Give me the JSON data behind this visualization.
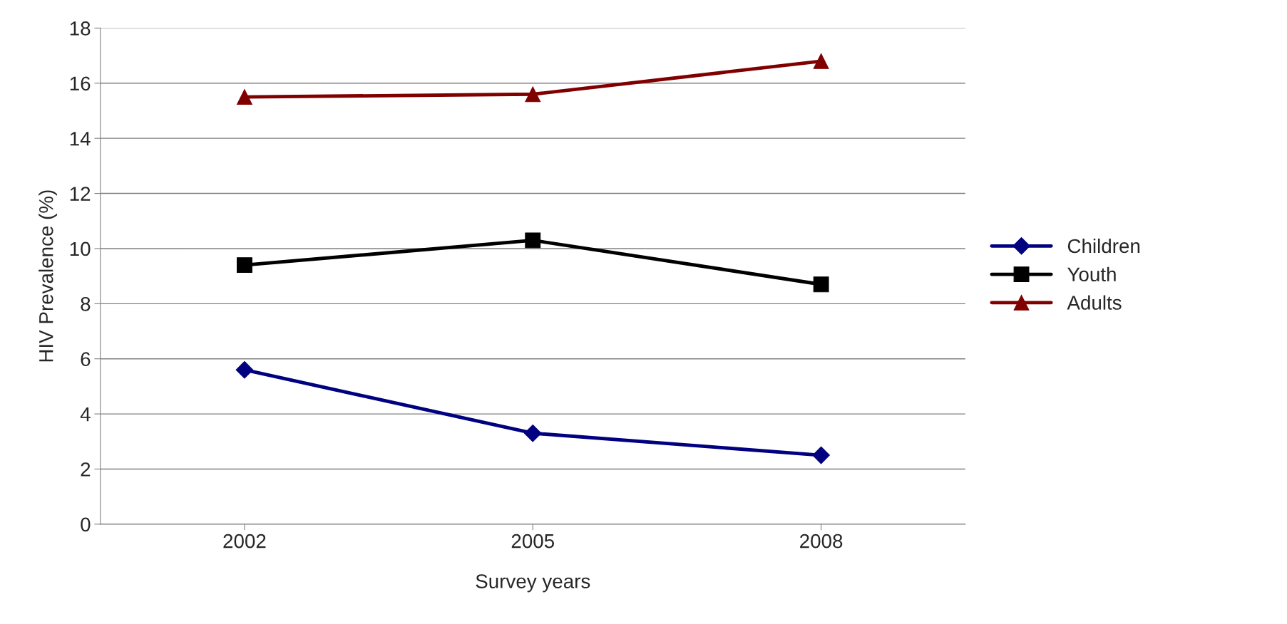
{
  "chart_data": {
    "type": "line",
    "xlabel": "Survey years",
    "ylabel": "HIV Prevalence (%)",
    "categories": [
      "2002",
      "2005",
      "2008"
    ],
    "series": [
      {
        "name": "Children",
        "color": "#000080",
        "marker": "diamond",
        "values": [
          5.6,
          3.3,
          2.5
        ]
      },
      {
        "name": "Youth",
        "color": "#000000",
        "marker": "square",
        "values": [
          9.4,
          10.3,
          8.7
        ]
      },
      {
        "name": "Adults",
        "color": "#800000",
        "marker": "triangle",
        "values": [
          15.5,
          15.6,
          16.8
        ]
      }
    ],
    "ylim": [
      0,
      18
    ],
    "yticks": [
      0,
      2,
      4,
      6,
      8,
      10,
      12,
      14,
      16,
      18
    ],
    "grid": "y",
    "legend": "right",
    "line_style": "solid"
  }
}
